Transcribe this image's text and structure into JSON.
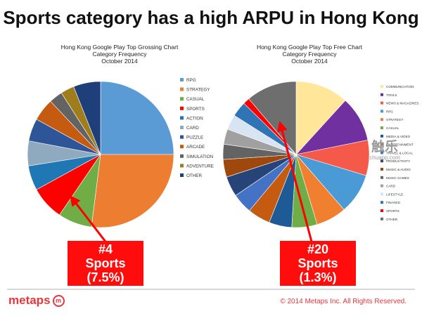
{
  "page_title": "Sports category has a high ARPU in Hong Kong",
  "chart_data": [
    {
      "type": "pie",
      "title_lines": [
        "Hong Kong Google Play Top Grossing Chart",
        "Category Frequency",
        "October 2014"
      ],
      "categories": [
        "RPG",
        "STRATEGY",
        "CASUAL",
        "SPORTS",
        "ACTION",
        "CARD",
        "PUZZLE",
        "ARCADE",
        "SIMULATION",
        "ADVENTURE",
        "OTHER"
      ],
      "values": [
        25.0,
        27.0,
        7.5,
        7.5,
        5.5,
        5.5,
        5.0,
        5.0,
        3.0,
        3.0,
        6.0
      ],
      "colors": [
        "#5b9bd5",
        "#ed7d31",
        "#70ad47",
        "#ff0000",
        "#1f77b4",
        "#8faabe",
        "#2e5597",
        "#c55a11",
        "#636363",
        "#a07d1c",
        "#1f3f7a"
      ],
      "legend_position": "right"
    },
    {
      "type": "pie",
      "title_lines": [
        "Hong Kong Google Play Top Free Chart",
        "Category Frequency",
        "October 2014"
      ],
      "categories": [
        "COMMUNICATION",
        "TOOLS",
        "NEWS & MAGAZINES",
        "RPG",
        "STRATEGY",
        "CASUAL",
        "MEDIA & VIDEO",
        "ENTERTAINMENT",
        "TRAVEL & LOCAL",
        "PRODUCTIVITY",
        "MUSIC & AUDIO",
        "MUSIC GAMES",
        "CARD",
        "LIFESTYLE",
        "FINANCE",
        "SPORTS",
        "OTHER"
      ],
      "values": [
        10.5,
        9.0,
        7.0,
        8.0,
        6.0,
        5.0,
        4.5,
        4.5,
        4.0,
        4.0,
        3.5,
        3.0,
        3.0,
        3.0,
        3.0,
        1.3,
        10.0
      ],
      "colors": [
        "#ffe699",
        "#7030a0",
        "#f4594a",
        "#4a9bd5",
        "#f08030",
        "#70ad47",
        "#1e5a96",
        "#c55a11",
        "#4472c4",
        "#264478",
        "#9e480e",
        "#636363",
        "#a0a0a0",
        "#d9e4f2",
        "#2f75b5",
        "#ff0000",
        "#6e6e6e"
      ],
      "legend_position": "right"
    }
  ],
  "callouts": [
    {
      "rank": "#4",
      "category": "Sports",
      "share": "(7.5%)"
    },
    {
      "rank": "#20",
      "category": "Sports",
      "share": "(1.3%)"
    }
  ],
  "footer": {
    "brand": "metaps",
    "brand_mark": "m",
    "copyright": "© 2014 Metaps Inc. All Rights Reserved."
  },
  "watermark": {
    "big": "触乐",
    "small": "chuapp.com"
  },
  "colors": {
    "accent": "#e8373a",
    "callout": "#ff0d0d"
  }
}
